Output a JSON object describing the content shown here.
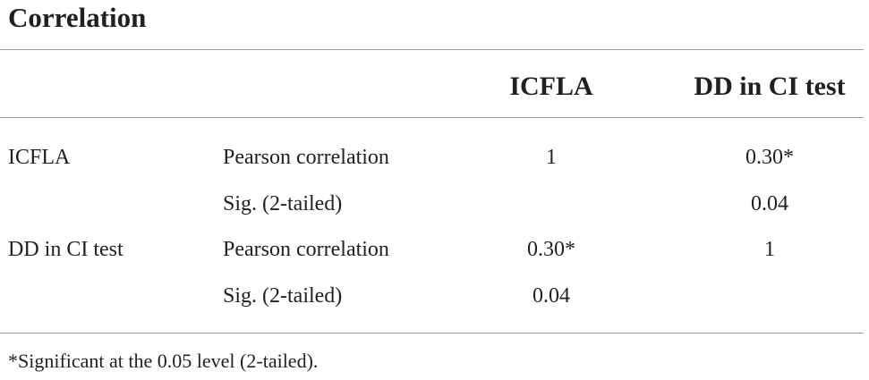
{
  "title": "Correlation",
  "columns": {
    "first": "ICFLA",
    "second": "DD in CI test"
  },
  "rows": [
    {
      "variable": "ICFLA",
      "measure": "Pearson correlation",
      "icfla": "1",
      "dd": "0.30*"
    },
    {
      "variable": "",
      "measure": "Sig. (2-tailed)",
      "icfla": "",
      "dd": "0.04"
    },
    {
      "variable": "DD in CI test",
      "measure": "Pearson correlation",
      "icfla": "0.30*",
      "dd": "1"
    },
    {
      "variable": "",
      "measure": "Sig. (2-tailed)",
      "icfla": "0.04",
      "dd": ""
    }
  ],
  "footnote": "*Significant at the 0.05 level (2-tailed)."
}
